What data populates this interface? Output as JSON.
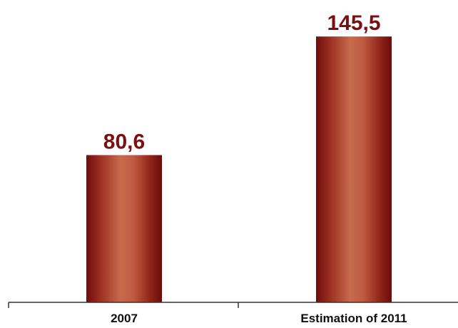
{
  "chart_data": {
    "type": "bar",
    "categories": [
      "2007",
      "Estimation of 2011"
    ],
    "values": [
      80.6,
      145.5
    ],
    "value_labels": [
      "80,6",
      "145,5"
    ],
    "title": "",
    "xlabel": "",
    "ylabel": "",
    "ylim": [
      0,
      160
    ],
    "grid": false,
    "legend": "none",
    "colors": {
      "bar_dark": "#6e0c0c",
      "bar_mid": "#9a2f22",
      "bar_light": "#c86a4d",
      "label": "#7a1012",
      "axis": "#333333"
    }
  }
}
